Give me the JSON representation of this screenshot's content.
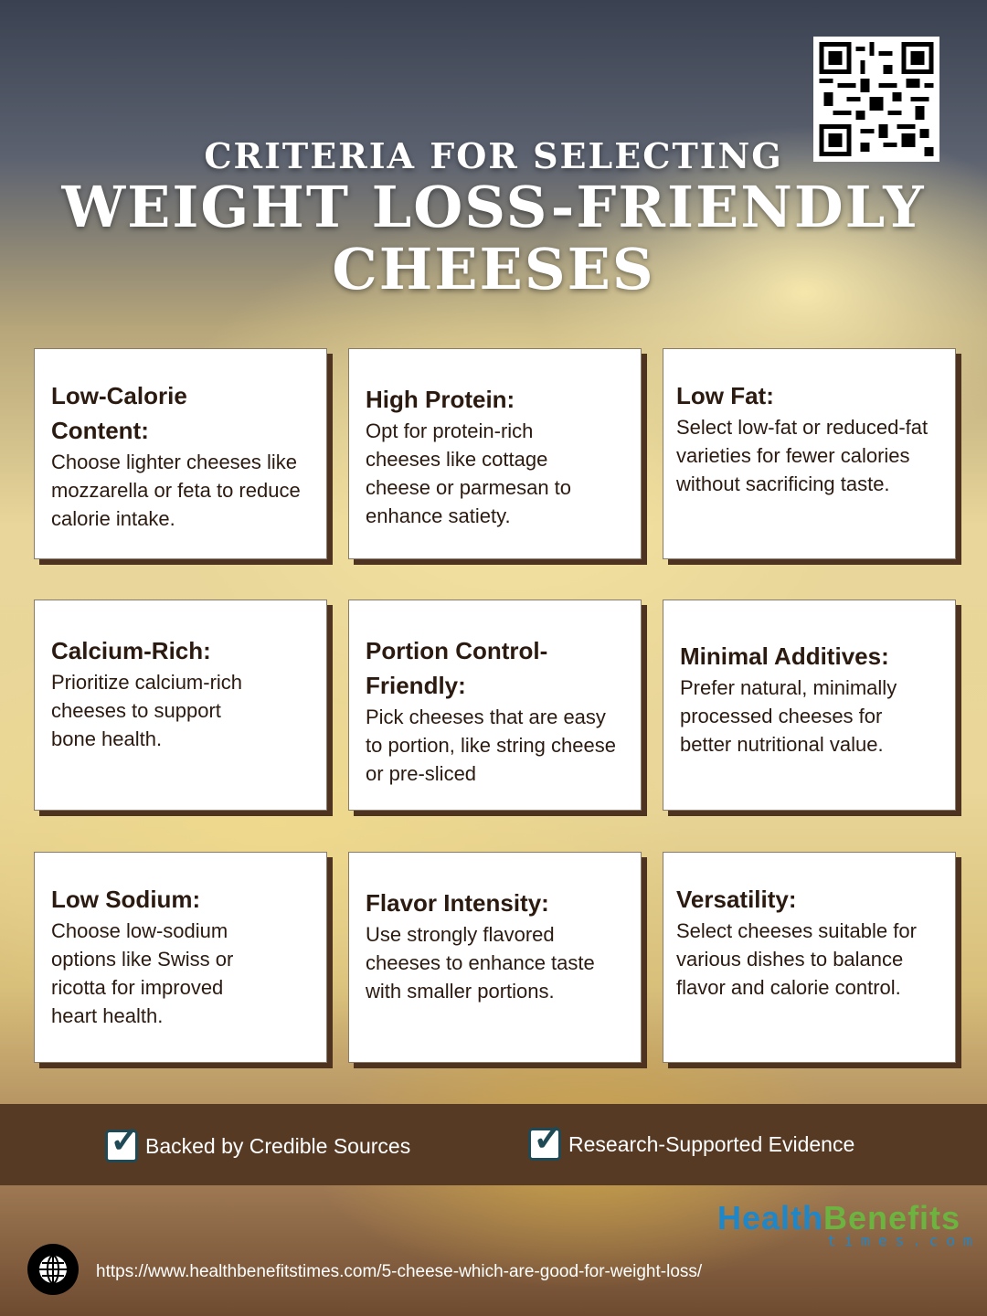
{
  "title": {
    "line1": "CRITERIA FOR SELECTING",
    "line2": "WEIGHT LOSS-FRIENDLY",
    "line3": "CHEESES"
  },
  "cards": [
    {
      "heading": "Low-Calorie Content:",
      "body": "Choose lighter cheeses like mozzarella or feta to reduce calorie intake."
    },
    {
      "heading": "High Protein:",
      "body": "Opt for protein-rich cheeses like cottage cheese or parmesan to enhance satiety."
    },
    {
      "heading": "Low Fat:",
      "body": "Select low-fat or reduced-fat varieties for fewer calories without sacrificing taste."
    },
    {
      "heading": "Calcium-Rich:",
      "body": "Prioritize calcium-rich cheeses to support bone health."
    },
    {
      "heading": "Portion Control-Friendly:",
      "body": "Pick cheeses that are easy to portion, like string cheese or pre-sliced"
    },
    {
      "heading": "Minimal Additives:",
      "body": "Prefer natural, minimally processed cheeses for better nutritional value."
    },
    {
      "heading": "Low Sodium:",
      "body": "Choose low-sodium options like Swiss or ricotta for improved heart health."
    },
    {
      "heading": "Flavor Intensity:",
      "body": "Use strongly flavored cheeses to enhance taste with smaller portions."
    },
    {
      "heading": "Versatility:",
      "body": "Select cheeses suitable for various dishes to balance flavor and calorie control."
    }
  ],
  "badges": [
    "Backed by Credible Sources",
    "Research-Supported Evidence"
  ],
  "logo": {
    "part1": "Health",
    "part2": "Benefits",
    "sub": "times.com"
  },
  "url": "https://www.healthbenefitstimes.com/5-cheese-which-are-good-for-weight-loss/",
  "colors": {
    "band": "#573a24",
    "text": "#2b1a10",
    "logo_blue": "#1f86c8",
    "logo_green": "#6cb33f"
  }
}
